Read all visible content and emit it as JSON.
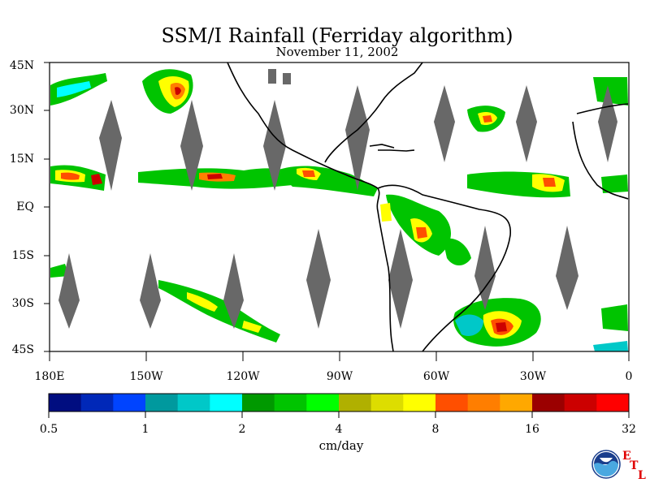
{
  "title": "SSM/I Rainfall (Ferriday algorithm)",
  "subtitle": "November 11, 2002",
  "y_axis_labels": [
    "45N",
    "30N",
    "15N",
    "EQ",
    "15S",
    "30S",
    "45S"
  ],
  "x_axis_labels": [
    "180E",
    "150W",
    "120W",
    "90W",
    "60W",
    "30W",
    "0"
  ],
  "colorbar": {
    "tick_labels": [
      "0.5",
      "1",
      "2",
      "4",
      "8",
      "16",
      "32"
    ],
    "units": "cm/day",
    "colors": [
      "#000d80",
      "#0028b8",
      "#0044ff",
      "#00999e",
      "#00c8c8",
      "#00ffff",
      "#009900",
      "#00c400",
      "#00ff00",
      "#b0b000",
      "#dddd00",
      "#ffff00",
      "#ff4f00",
      "#ff7e00",
      "#ffa800",
      "#9b0000",
      "#cc0000",
      "#ff0000"
    ]
  },
  "map": {
    "lat_range": [
      -45,
      45
    ],
    "lon_range": [
      -180,
      0
    ],
    "no_data_swath_color": "#686868",
    "coastline_color": "#000000"
  },
  "logo": {
    "icon": "noaa-logo-icon",
    "letters": [
      "E",
      "T",
      "L"
    ],
    "letter_color": "#e00000"
  }
}
